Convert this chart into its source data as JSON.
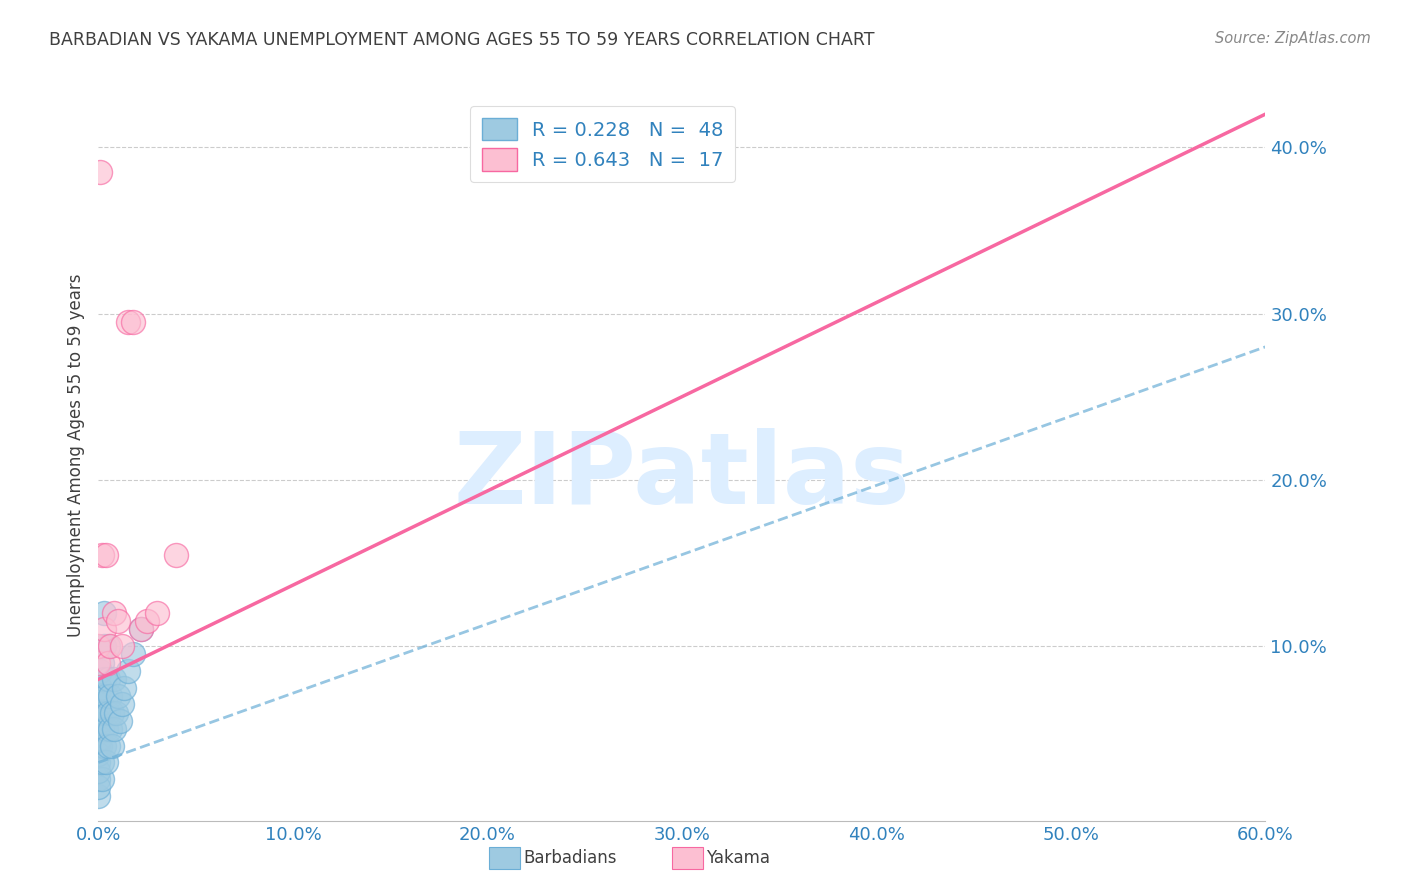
{
  "title": "BARBADIAN VS YAKAMA UNEMPLOYMENT AMONG AGES 55 TO 59 YEARS CORRELATION CHART",
  "source": "Source: ZipAtlas.com",
  "ylabel": "Unemployment Among Ages 55 to 59 years",
  "xlim": [
    0.0,
    0.6
  ],
  "ylim": [
    -0.005,
    0.435
  ],
  "xticks": [
    0.0,
    0.1,
    0.2,
    0.3,
    0.4,
    0.5,
    0.6
  ],
  "yticks": [
    0.1,
    0.2,
    0.3,
    0.4
  ],
  "xticklabels": [
    "0.0%",
    "10.0%",
    "20.0%",
    "30.0%",
    "40.0%",
    "50.0%",
    "60.0%"
  ],
  "yticklabels": [
    "10.0%",
    "20.0%",
    "30.0%",
    "40.0%"
  ],
  "barbadian_R": 0.228,
  "barbadian_N": 48,
  "yakama_R": 0.643,
  "yakama_N": 17,
  "blue_color": "#9ecae1",
  "pink_color": "#fcbfd2",
  "blue_edge_color": "#6baed6",
  "pink_edge_color": "#f768a1",
  "blue_line_color": "#9ecae1",
  "pink_line_color": "#f768a1",
  "legend_text_color": "#3182bd",
  "title_color": "#404040",
  "axis_tick_color": "#3182bd",
  "grid_color": "#cccccc",
  "watermark_color": "#ddeeff",
  "barbadian_x": [
    0.0,
    0.0,
    0.0,
    0.0,
    0.0,
    0.0,
    0.0,
    0.0,
    0.0,
    0.0,
    0.001,
    0.001,
    0.001,
    0.001,
    0.001,
    0.001,
    0.001,
    0.002,
    0.002,
    0.002,
    0.002,
    0.002,
    0.003,
    0.003,
    0.003,
    0.003,
    0.003,
    0.004,
    0.004,
    0.004,
    0.005,
    0.005,
    0.005,
    0.005,
    0.006,
    0.006,
    0.007,
    0.007,
    0.008,
    0.008,
    0.009,
    0.01,
    0.011,
    0.012,
    0.013,
    0.015,
    0.018,
    0.022
  ],
  "barbadian_y": [
    0.01,
    0.02,
    0.03,
    0.04,
    0.05,
    0.06,
    0.07,
    0.015,
    0.025,
    0.035,
    0.045,
    0.055,
    0.065,
    0.075,
    0.085,
    0.04,
    0.06,
    0.02,
    0.03,
    0.05,
    0.07,
    0.09,
    0.04,
    0.06,
    0.08,
    0.1,
    0.12,
    0.03,
    0.05,
    0.07,
    0.04,
    0.06,
    0.08,
    0.1,
    0.05,
    0.07,
    0.04,
    0.06,
    0.05,
    0.08,
    0.06,
    0.07,
    0.055,
    0.065,
    0.075,
    0.085,
    0.095,
    0.11
  ],
  "yakama_x": [
    0.0,
    0.0,
    0.001,
    0.002,
    0.003,
    0.004,
    0.005,
    0.006,
    0.008,
    0.01,
    0.012,
    0.015,
    0.018,
    0.022,
    0.025,
    0.03,
    0.04
  ],
  "yakama_y": [
    0.09,
    0.1,
    0.385,
    0.155,
    0.11,
    0.155,
    0.09,
    0.1,
    0.12,
    0.115,
    0.1,
    0.295,
    0.295,
    0.11,
    0.115,
    0.12,
    0.155
  ],
  "pink_line_x0": 0.0,
  "pink_line_y0": 0.08,
  "pink_line_x1": 0.6,
  "pink_line_y1": 0.42,
  "blue_line_x0": 0.0,
  "blue_line_y0": 0.03,
  "blue_line_x1": 0.6,
  "blue_line_y1": 0.28
}
